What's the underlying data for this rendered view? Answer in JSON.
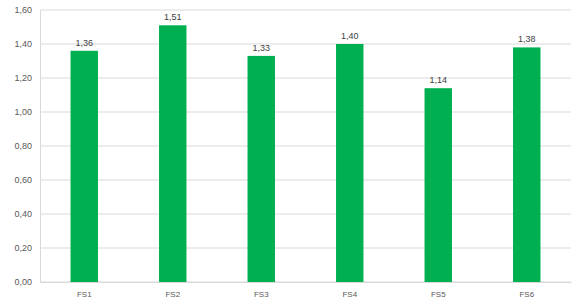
{
  "chart_data": {
    "type": "bar",
    "categories": [
      "FS1",
      "FS2",
      "FS3",
      "FS4",
      "FS5",
      "FS6"
    ],
    "values": [
      1.36,
      1.51,
      1.33,
      1.4,
      1.14,
      1.38
    ],
    "value_labels": [
      "1,36",
      "1,51",
      "1,33",
      "1,40",
      "1,14",
      "1,38"
    ],
    "color": "#00b050",
    "ylim": [
      0,
      1.6
    ],
    "yticks": [
      {
        "value": 0,
        "label": "0,00"
      },
      {
        "value": 0.2,
        "label": "0,20"
      },
      {
        "value": 0.4,
        "label": "0,40"
      },
      {
        "value": 0.6,
        "label": "0,60"
      },
      {
        "value": 0.8,
        "label": "0,80"
      },
      {
        "value": 1.0,
        "label": "1,00"
      },
      {
        "value": 1.2,
        "label": "1,20"
      },
      {
        "value": 1.4,
        "label": "1,40"
      },
      {
        "value": 1.6,
        "label": "1,60"
      }
    ],
    "grid": true,
    "data_labels": true
  }
}
